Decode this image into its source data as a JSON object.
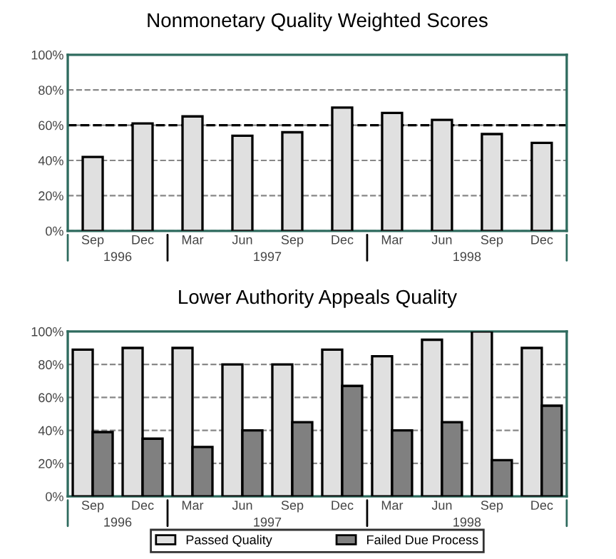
{
  "chart_data": [
    {
      "type": "bar",
      "title": "Nonmonetary Quality Weighted Scores",
      "categories": [
        "Sep",
        "Dec",
        "Mar",
        "Jun",
        "Sep",
        "Dec",
        "Mar",
        "Jun",
        "Sep",
        "Dec"
      ],
      "series": [
        {
          "color": "#e0e0e0",
          "values": [
            42,
            61,
            65,
            54,
            56,
            70,
            67,
            63,
            55,
            50
          ]
        }
      ],
      "ylim": [
        0,
        100
      ],
      "yticks": [
        {
          "value": 0,
          "label": "0%"
        },
        {
          "value": 20,
          "label": "20%"
        },
        {
          "value": 40,
          "label": "40%"
        },
        {
          "value": 60,
          "label": "60%"
        },
        {
          "value": 80,
          "label": "80%"
        },
        {
          "value": 100,
          "label": "100%"
        }
      ],
      "grid": "y",
      "ref_lines": [
        {
          "axis": "y",
          "value": 60,
          "color": "#000000",
          "line_style": "dashed"
        }
      ],
      "annotations": [
        "1996",
        "1997",
        "1998"
      ],
      "legend": false
    },
    {
      "type": "bar",
      "title": "Lower Authority Appeals Quality",
      "categories": [
        "Sep",
        "Dec",
        "Mar",
        "Jun",
        "Sep",
        "Dec",
        "Mar",
        "Jun",
        "Sep",
        "Dec"
      ],
      "series": [
        {
          "name": "Passed Quality",
          "color": "#e0e0e0",
          "values": [
            89,
            90,
            90,
            80,
            80,
            89,
            85,
            95,
            100,
            90
          ]
        },
        {
          "name": "Failed Due Process",
          "color": "#808080",
          "values": [
            39,
            35,
            30,
            40,
            45,
            67,
            40,
            45,
            22,
            55
          ]
        }
      ],
      "ylim": [
        0,
        100
      ],
      "yticks": [
        {
          "value": 0,
          "label": "0%"
        },
        {
          "value": 20,
          "label": "20%"
        },
        {
          "value": 40,
          "label": "40%"
        },
        {
          "value": 60,
          "label": "60%"
        },
        {
          "value": 80,
          "label": "80%"
        },
        {
          "value": 100,
          "label": "100%"
        }
      ],
      "grid": "y",
      "annotations": [
        "1996",
        "1997",
        "1998"
      ],
      "legend": "bottom"
    }
  ]
}
